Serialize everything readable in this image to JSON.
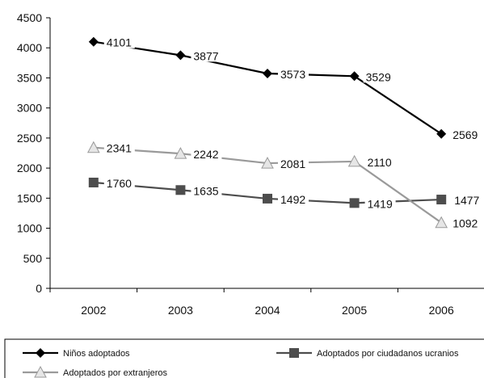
{
  "chart_data": {
    "type": "line",
    "title": "",
    "xlabel": "",
    "ylabel": "",
    "categories": [
      "2002",
      "2003",
      "2004",
      "2005",
      "2006"
    ],
    "ylim": [
      0,
      4500
    ],
    "yticks": [
      0,
      500,
      1000,
      1500,
      2000,
      2500,
      3000,
      3500,
      4000,
      4500
    ],
    "grid": false,
    "legend_position": "bottom",
    "series": [
      {
        "name": "Niños adoptados",
        "values": [
          4101,
          3877,
          3573,
          3529,
          2569
        ],
        "labels": [
          "4101",
          "3877",
          "3573",
          "3529",
          "2569"
        ],
        "color": "#000000",
        "marker": "diamond"
      },
      {
        "name": "Adoptados por ciudadanos ucranios",
        "values": [
          1760,
          1635,
          1492,
          1419,
          1477
        ],
        "labels": [
          "1760",
          "1635",
          "1492",
          "1419",
          "1477"
        ],
        "color": "#4d4d4d",
        "marker": "square"
      },
      {
        "name": "Adoptados por extranjeros",
        "values": [
          2341,
          2242,
          2081,
          2110,
          1092
        ],
        "labels": [
          "2341",
          "2242",
          "2081",
          "2110",
          "1092"
        ],
        "color": "#9a9a9a",
        "marker": "triangle"
      }
    ]
  }
}
